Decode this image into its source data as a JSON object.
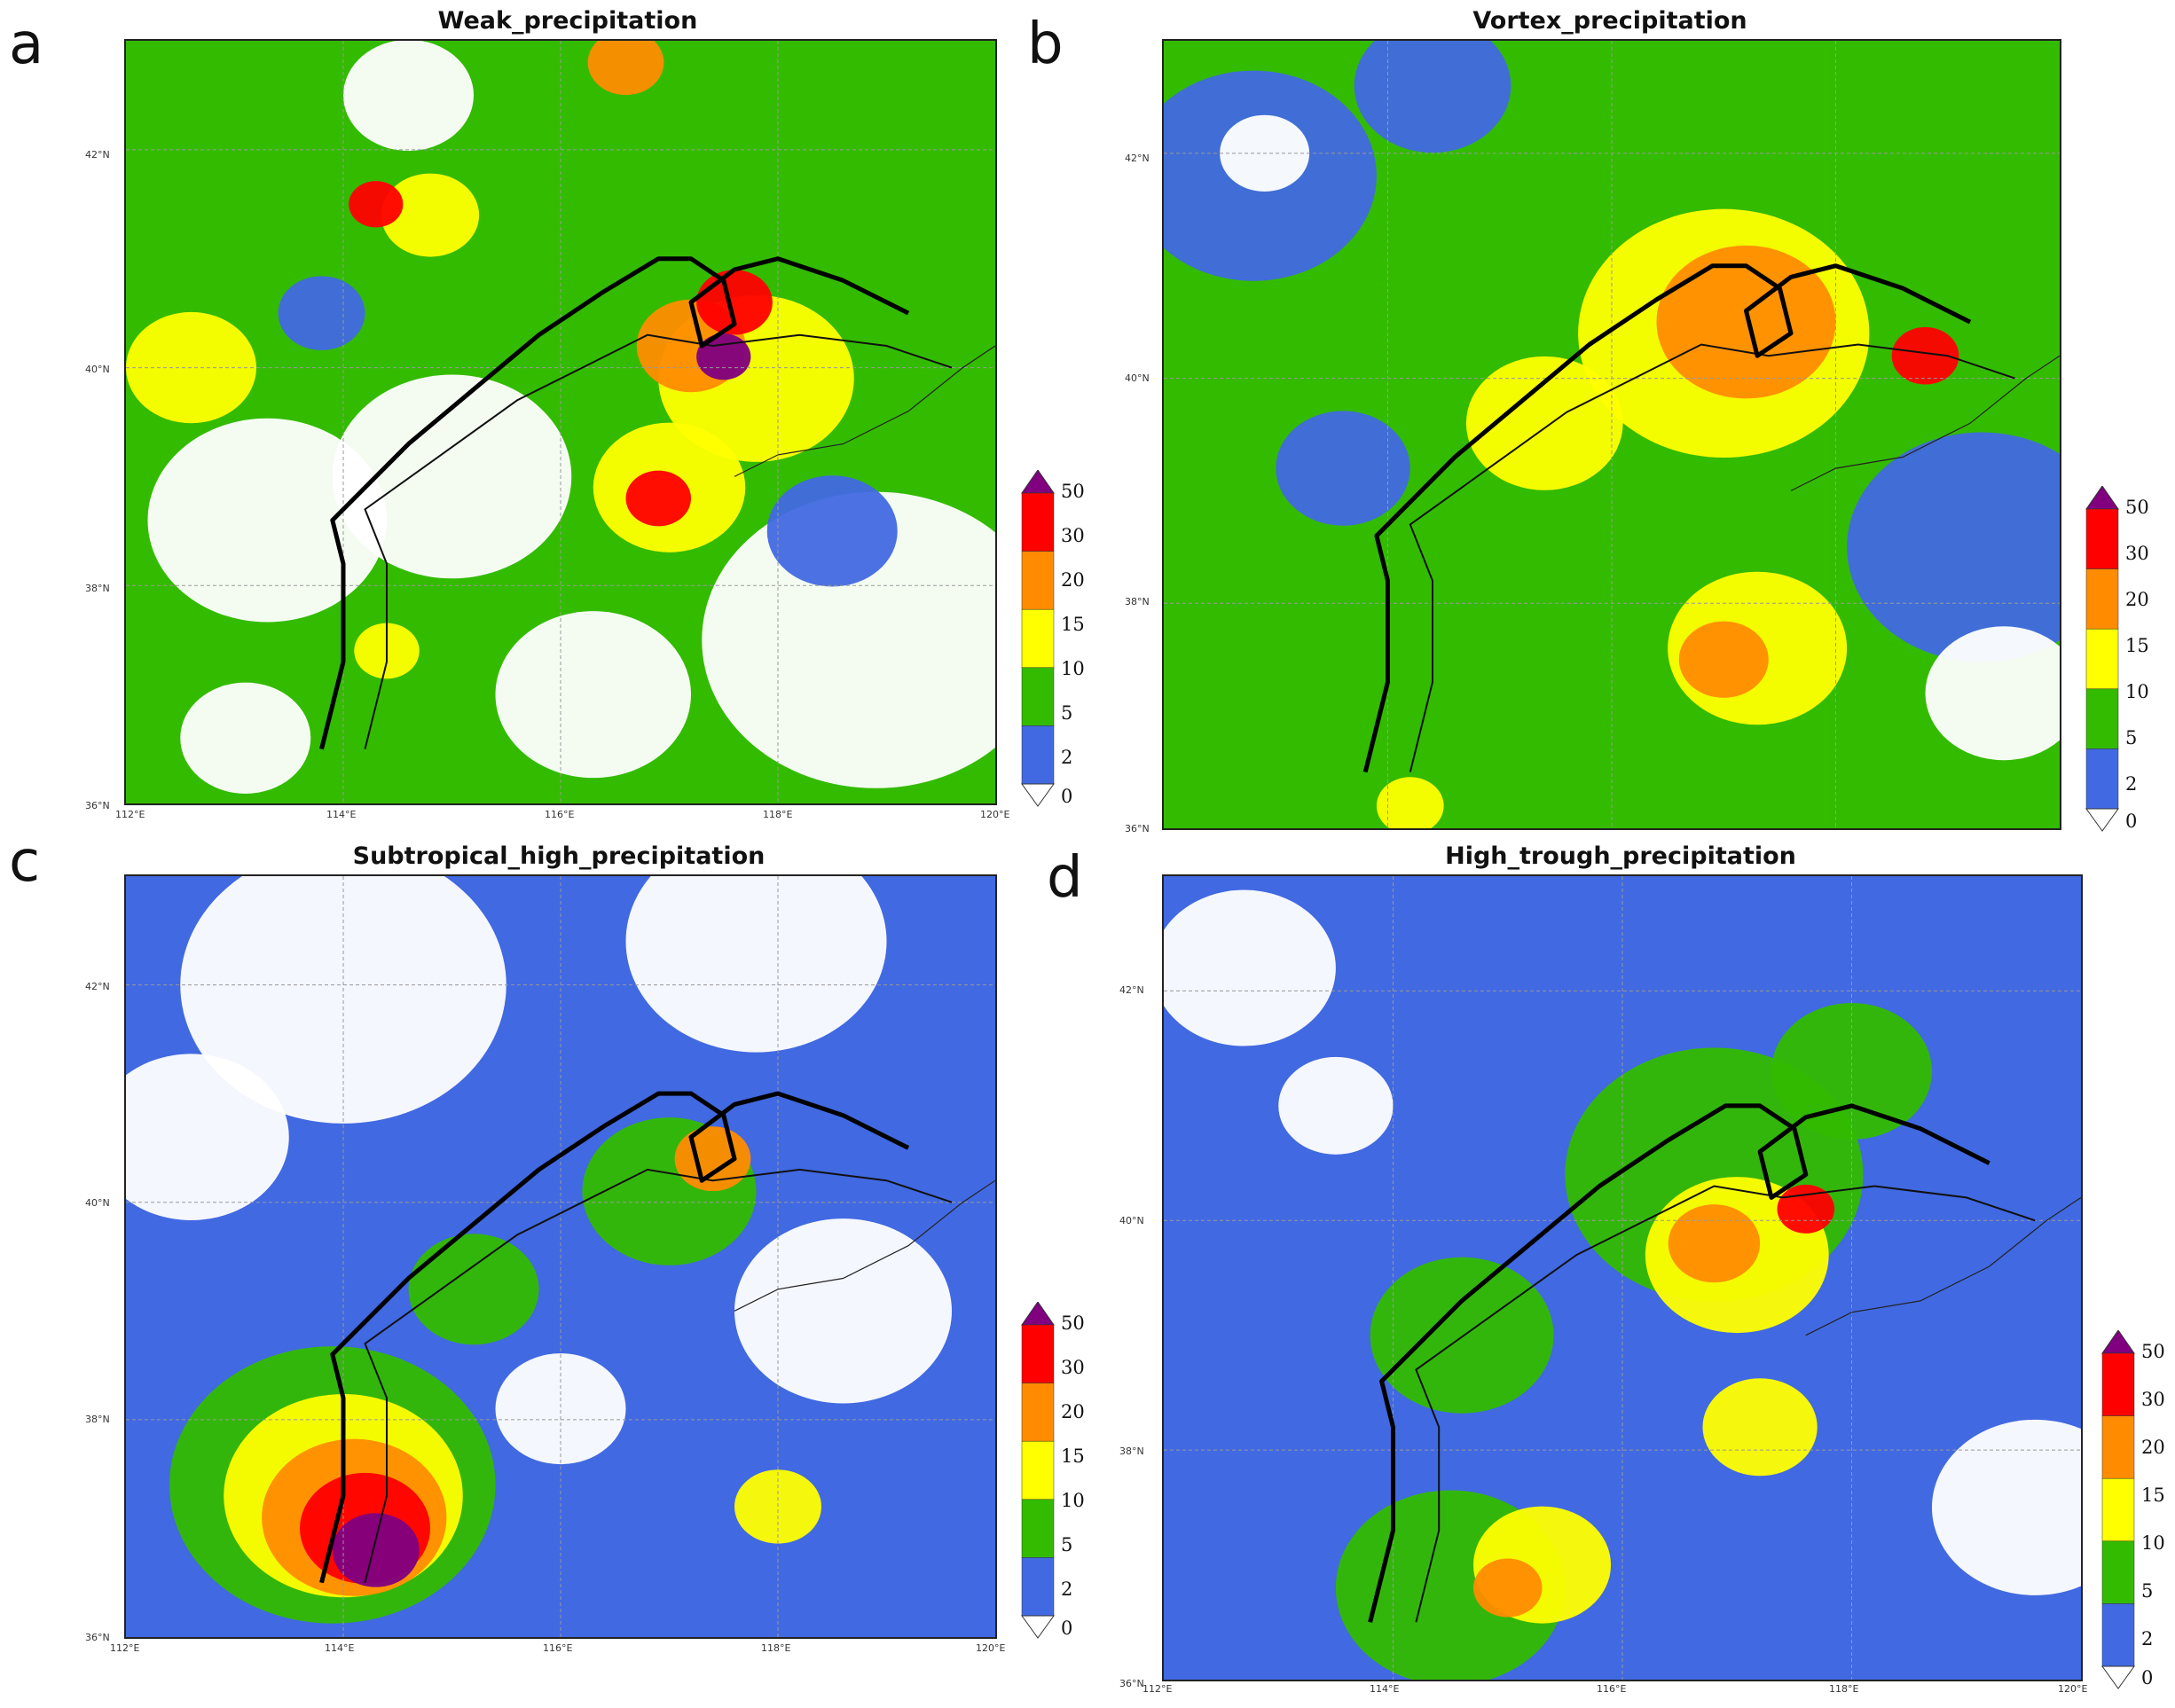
{
  "colorbar": {
    "levels": [
      "50",
      "30",
      "20",
      "15",
      "10",
      "5",
      "2",
      "0"
    ],
    "colors": [
      "#800080",
      "#ff0000",
      "#ff8c00",
      "#ffff00",
      "#33bb00",
      "#4169e1",
      "#ffffff"
    ]
  },
  "panels": [
    {
      "letter": "a",
      "title": "Weak_precipitation",
      "lat_labels": [
        "42°N",
        "40°N",
        "38°N",
        "36°N"
      ],
      "lon_labels": [
        "112°E",
        "114°E",
        "116°E",
        "118°E",
        "120°E"
      ],
      "base_color": "#33bb00",
      "blobs": [
        {
          "lon": 113.3,
          "lat": 38.6,
          "r": 1.1,
          "c": "#ffffff"
        },
        {
          "lon": 115.0,
          "lat": 39.0,
          "r": 1.1,
          "c": "#ffffff"
        },
        {
          "lon": 116.3,
          "lat": 37.0,
          "r": 0.9,
          "c": "#ffffff"
        },
        {
          "lon": 114.6,
          "lat": 42.5,
          "r": 0.6,
          "c": "#ffffff"
        },
        {
          "lon": 113.1,
          "lat": 36.6,
          "r": 0.6,
          "c": "#ffffff"
        },
        {
          "lon": 118.9,
          "lat": 37.5,
          "r": 1.6,
          "c": "#ffffff"
        },
        {
          "lon": 117.8,
          "lat": 39.9,
          "r": 0.9,
          "c": "#ffff00"
        },
        {
          "lon": 117.2,
          "lat": 40.2,
          "r": 0.5,
          "c": "#ff8c00"
        },
        {
          "lon": 117.6,
          "lat": 40.6,
          "r": 0.35,
          "c": "#ff0000"
        },
        {
          "lon": 117.5,
          "lat": 40.1,
          "r": 0.25,
          "c": "#800080"
        },
        {
          "lon": 117.0,
          "lat": 38.9,
          "r": 0.7,
          "c": "#ffff00"
        },
        {
          "lon": 116.9,
          "lat": 38.8,
          "r": 0.3,
          "c": "#ff0000"
        },
        {
          "lon": 112.6,
          "lat": 40.0,
          "r": 0.6,
          "c": "#ffff00"
        },
        {
          "lon": 114.8,
          "lat": 41.4,
          "r": 0.45,
          "c": "#ffff00"
        },
        {
          "lon": 114.3,
          "lat": 41.5,
          "r": 0.25,
          "c": "#ff0000"
        },
        {
          "lon": 116.6,
          "lat": 42.8,
          "r": 0.35,
          "c": "#ff8c00"
        },
        {
          "lon": 114.4,
          "lat": 37.4,
          "r": 0.3,
          "c": "#ffff00"
        },
        {
          "lon": 113.8,
          "lat": 40.5,
          "r": 0.4,
          "c": "#4169e1"
        },
        {
          "lon": 118.5,
          "lat": 38.5,
          "r": 0.6,
          "c": "#4169e1"
        }
      ]
    },
    {
      "letter": "b",
      "title": "Vortex_precipitation",
      "lat_labels": [
        "42°N",
        "40°N",
        "38°N",
        "36°N"
      ],
      "lon_labels": [],
      "base_color": "#33bb00",
      "blobs": [
        {
          "lon": 112.8,
          "lat": 41.8,
          "r": 1.1,
          "c": "#4169e1"
        },
        {
          "lon": 119.3,
          "lat": 38.5,
          "r": 1.2,
          "c": "#4169e1"
        },
        {
          "lon": 114.4,
          "lat": 42.6,
          "r": 0.7,
          "c": "#4169e1"
        },
        {
          "lon": 113.6,
          "lat": 39.2,
          "r": 0.6,
          "c": "#4169e1"
        },
        {
          "lon": 119.5,
          "lat": 37.2,
          "r": 0.7,
          "c": "#ffffff"
        },
        {
          "lon": 112.9,
          "lat": 42.0,
          "r": 0.4,
          "c": "#ffffff"
        },
        {
          "lon": 117.0,
          "lat": 40.4,
          "r": 1.3,
          "c": "#ffff00"
        },
        {
          "lon": 115.4,
          "lat": 39.6,
          "r": 0.7,
          "c": "#ffff00"
        },
        {
          "lon": 117.2,
          "lat": 40.5,
          "r": 0.8,
          "c": "#ff8c00"
        },
        {
          "lon": 118.8,
          "lat": 40.2,
          "r": 0.3,
          "c": "#ff0000"
        },
        {
          "lon": 117.3,
          "lat": 37.6,
          "r": 0.8,
          "c": "#ffff00"
        },
        {
          "lon": 117.0,
          "lat": 37.5,
          "r": 0.4,
          "c": "#ff8c00"
        },
        {
          "lon": 114.2,
          "lat": 36.2,
          "r": 0.3,
          "c": "#ffff00"
        }
      ]
    },
    {
      "letter": "c",
      "title": "Subtropical_high_precipitation",
      "lat_labels": [
        "42°N",
        "40°N",
        "38°N",
        "36°N"
      ],
      "lon_labels": [
        "112°E",
        "114°E",
        "116°E",
        "118°E",
        "120°E"
      ],
      "base_color": "#4169e1",
      "blobs": [
        {
          "lon": 114.0,
          "lat": 42.0,
          "r": 1.5,
          "c": "#ffffff"
        },
        {
          "lon": 117.8,
          "lat": 42.4,
          "r": 1.2,
          "c": "#ffffff"
        },
        {
          "lon": 112.6,
          "lat": 40.6,
          "r": 0.9,
          "c": "#ffffff"
        },
        {
          "lon": 118.6,
          "lat": 39.0,
          "r": 1.0,
          "c": "#ffffff"
        },
        {
          "lon": 116.0,
          "lat": 38.1,
          "r": 0.6,
          "c": "#ffffff"
        },
        {
          "lon": 117.0,
          "lat": 40.1,
          "r": 0.8,
          "c": "#33bb00"
        },
        {
          "lon": 115.2,
          "lat": 39.2,
          "r": 0.6,
          "c": "#33bb00"
        },
        {
          "lon": 117.4,
          "lat": 40.4,
          "r": 0.35,
          "c": "#ff8c00"
        },
        {
          "lon": 113.9,
          "lat": 37.4,
          "r": 1.5,
          "c": "#33bb00"
        },
        {
          "lon": 114.0,
          "lat": 37.3,
          "r": 1.1,
          "c": "#ffff00"
        },
        {
          "lon": 114.1,
          "lat": 37.1,
          "r": 0.85,
          "c": "#ff8c00"
        },
        {
          "lon": 114.2,
          "lat": 37.0,
          "r": 0.6,
          "c": "#ff0000"
        },
        {
          "lon": 114.3,
          "lat": 36.8,
          "r": 0.4,
          "c": "#800080"
        },
        {
          "lon": 118.0,
          "lat": 37.2,
          "r": 0.4,
          "c": "#ffff00"
        }
      ]
    },
    {
      "letter": "d",
      "title": "High_trough_precipitation",
      "lat_labels": [
        "42°N",
        "40°N",
        "38°N",
        "36°N"
      ],
      "lon_labels": [
        "112°E",
        "114°E",
        "116°E",
        "118°E",
        "120°E"
      ],
      "base_color": "#4169e1",
      "blobs": [
        {
          "lon": 112.7,
          "lat": 42.2,
          "r": 0.8,
          "c": "#ffffff"
        },
        {
          "lon": 113.5,
          "lat": 41.0,
          "r": 0.5,
          "c": "#ffffff"
        },
        {
          "lon": 119.6,
          "lat": 37.5,
          "r": 0.9,
          "c": "#ffffff"
        },
        {
          "lon": 116.8,
          "lat": 40.4,
          "r": 1.3,
          "c": "#33bb00"
        },
        {
          "lon": 114.6,
          "lat": 39.0,
          "r": 0.8,
          "c": "#33bb00"
        },
        {
          "lon": 114.5,
          "lat": 36.8,
          "r": 1.0,
          "c": "#33bb00"
        },
        {
          "lon": 118.0,
          "lat": 41.3,
          "r": 0.7,
          "c": "#33bb00"
        },
        {
          "lon": 117.0,
          "lat": 39.7,
          "r": 0.8,
          "c": "#ffff00"
        },
        {
          "lon": 116.8,
          "lat": 39.8,
          "r": 0.4,
          "c": "#ff8c00"
        },
        {
          "lon": 117.6,
          "lat": 40.1,
          "r": 0.25,
          "c": "#ff0000"
        },
        {
          "lon": 115.3,
          "lat": 37.0,
          "r": 0.6,
          "c": "#ffff00"
        },
        {
          "lon": 115.0,
          "lat": 36.8,
          "r": 0.3,
          "c": "#ff8c00"
        },
        {
          "lon": 117.2,
          "lat": 38.2,
          "r": 0.5,
          "c": "#ffff00"
        }
      ]
    }
  ]
}
